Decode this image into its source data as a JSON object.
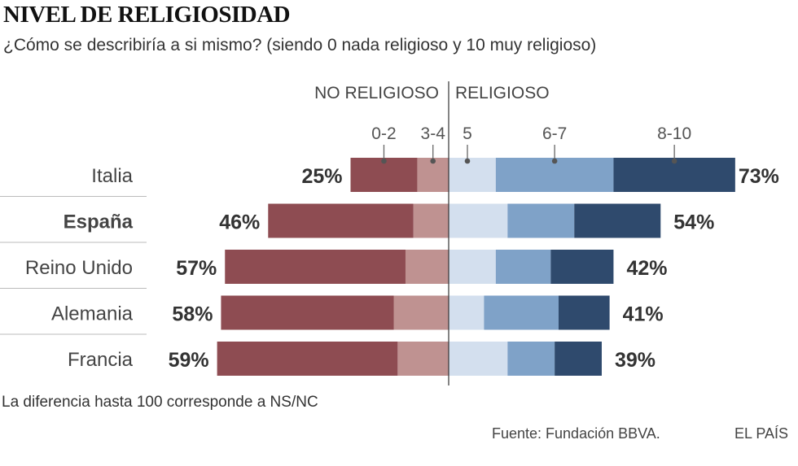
{
  "chart_data": {
    "type": "bar",
    "orientation": "horizontal-diverging-stacked",
    "title": "NIVEL DE RELIGIOSIDAD",
    "subtitle": "¿Cómo se describiría a si mismo? (siendo 0 nada religioso y 10 muy religioso)",
    "side_labels": {
      "left": "NO RELIGIOSO",
      "right": "RELIGIOSO"
    },
    "categories": [
      "Italia",
      "España",
      "Reino Unido",
      "Alemania",
      "Francia"
    ],
    "highlight": "España",
    "series": [
      {
        "name": "0-2",
        "side": "left",
        "color": "#8e4c52",
        "values": [
          17,
          37,
          46,
          44,
          46
        ]
      },
      {
        "name": "3-4",
        "side": "left",
        "color": "#bf9291",
        "values": [
          8,
          9,
          11,
          14,
          13
        ]
      },
      {
        "name": "5",
        "side": "right",
        "color": "#d3dfee",
        "values": [
          12,
          15,
          12,
          9,
          15
        ]
      },
      {
        "name": "6-7",
        "side": "right",
        "color": "#7fa2c8",
        "values": [
          30,
          17,
          14,
          19,
          12
        ]
      },
      {
        "name": "8-10",
        "side": "right",
        "color": "#2f4a6d",
        "values": [
          31,
          22,
          16,
          13,
          12
        ]
      }
    ],
    "totals_left": [
      "25%",
      "46%",
      "57%",
      "58%",
      "59%"
    ],
    "totals_right": [
      "73%",
      "54%",
      "42%",
      "41%",
      "39%"
    ],
    "unit": "%"
  },
  "note": "La diferencia hasta 100 corresponde a NS/NC",
  "source": "Fuente: Fundación BBVA.",
  "brand": "EL PAÍS"
}
